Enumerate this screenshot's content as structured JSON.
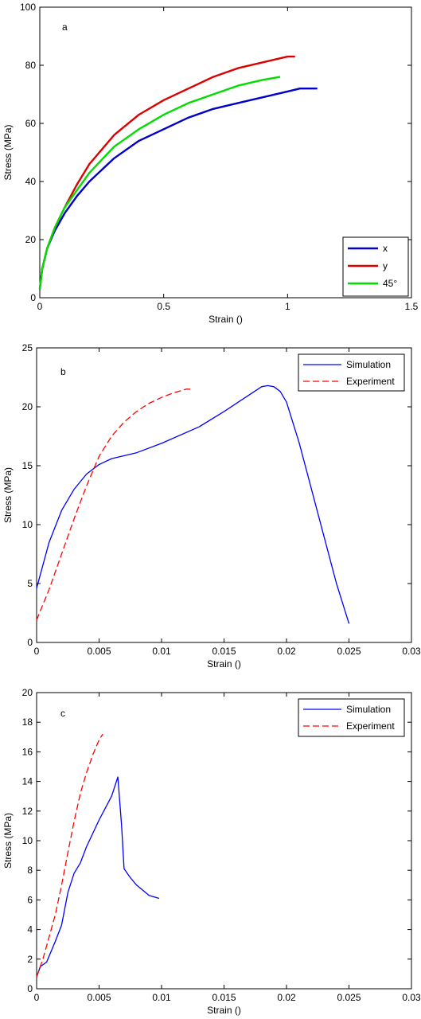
{
  "chart_data": [
    {
      "type": "line",
      "panel_label": "a",
      "xlabel": "Strain ()",
      "ylabel": "Stress (MPa)",
      "xlim": [
        0,
        1.5
      ],
      "ylim": [
        0,
        100
      ],
      "xticks": [
        0,
        0.5,
        1,
        1.5
      ],
      "xtick_labels": [
        "0",
        "0.5",
        "1",
        "1.5"
      ],
      "yticks": [
        0,
        20,
        40,
        60,
        80,
        100
      ],
      "ytick_labels": [
        "0",
        "20",
        "40",
        "60",
        "80",
        "100"
      ],
      "legend_position": "bottom-right",
      "series": [
        {
          "name": "x",
          "color": "#0000cc",
          "dash": "solid",
          "x": [
            0,
            0.01,
            0.03,
            0.06,
            0.1,
            0.15,
            0.2,
            0.3,
            0.4,
            0.5,
            0.6,
            0.7,
            0.8,
            0.9,
            1.0,
            1.05,
            1.1,
            1.12
          ],
          "y": [
            3,
            10,
            17,
            23,
            29,
            35,
            40,
            48,
            54,
            58,
            62,
            65,
            67,
            69,
            71,
            72,
            72,
            72
          ]
        },
        {
          "name": "y",
          "color": "#dd0000",
          "dash": "solid",
          "x": [
            0,
            0.01,
            0.03,
            0.06,
            0.1,
            0.15,
            0.2,
            0.3,
            0.4,
            0.5,
            0.6,
            0.7,
            0.8,
            0.9,
            1.0,
            1.03
          ],
          "y": [
            3,
            10,
            17,
            24,
            31,
            39,
            46,
            56,
            63,
            68,
            72,
            76,
            79,
            81,
            83,
            83
          ]
        },
        {
          "name": "45°",
          "color": "#00dd00",
          "dash": "solid",
          "x": [
            0,
            0.01,
            0.03,
            0.06,
            0.1,
            0.15,
            0.2,
            0.3,
            0.4,
            0.5,
            0.6,
            0.7,
            0.8,
            0.9,
            0.97
          ],
          "y": [
            3,
            10,
            17,
            24,
            31,
            37,
            43,
            52,
            58,
            63,
            67,
            70,
            73,
            75,
            76
          ]
        }
      ]
    },
    {
      "type": "line",
      "panel_label": "b",
      "xlabel": "Strain ()",
      "ylabel": "Stress (MPa)",
      "xlim": [
        0,
        0.03
      ],
      "ylim": [
        0,
        25
      ],
      "xticks": [
        0,
        0.005,
        0.01,
        0.015,
        0.02,
        0.025,
        0.03
      ],
      "xtick_labels": [
        "0",
        "0.005",
        "0.01",
        "0.015",
        "0.02",
        "0.025",
        "0.03"
      ],
      "yticks": [
        0,
        5,
        10,
        15,
        20,
        25
      ],
      "ytick_labels": [
        "0",
        "5",
        "10",
        "15",
        "20",
        "25"
      ],
      "legend_position": "top-right",
      "series": [
        {
          "name": "Simulation",
          "color": "#0000ff",
          "dash": "solid",
          "x": [
            0,
            0.001,
            0.002,
            0.003,
            0.004,
            0.005,
            0.006,
            0.008,
            0.01,
            0.013,
            0.015,
            0.017,
            0.018,
            0.0185,
            0.019,
            0.0195,
            0.02,
            0.021,
            0.022,
            0.023,
            0.024,
            0.025
          ],
          "y": [
            4.6,
            8.5,
            11.2,
            13.0,
            14.3,
            15.1,
            15.6,
            16.1,
            16.9,
            18.3,
            19.6,
            21.0,
            21.7,
            21.8,
            21.7,
            21.3,
            20.4,
            17.0,
            13.0,
            9.0,
            5.0,
            1.6
          ]
        },
        {
          "name": "Experiment",
          "color": "#ff0000",
          "dash": "dashed",
          "x": [
            0,
            0.001,
            0.002,
            0.003,
            0.004,
            0.005,
            0.006,
            0.007,
            0.008,
            0.009,
            0.01,
            0.011,
            0.012,
            0.0125
          ],
          "y": [
            1.9,
            4.5,
            7.5,
            10.5,
            13.3,
            15.8,
            17.5,
            18.7,
            19.6,
            20.3,
            20.8,
            21.2,
            21.5,
            21.5
          ]
        }
      ]
    },
    {
      "type": "line",
      "panel_label": "c",
      "xlabel": "Strain ()",
      "ylabel": "Stress (MPa)",
      "xlim": [
        0,
        0.03
      ],
      "ylim": [
        0,
        20
      ],
      "xticks": [
        0,
        0.005,
        0.01,
        0.015,
        0.02,
        0.025,
        0.03
      ],
      "xtick_labels": [
        "0",
        "0.005",
        "0.01",
        "0.015",
        "0.02",
        "0.025",
        "0.03"
      ],
      "yticks": [
        0,
        2,
        4,
        6,
        8,
        10,
        12,
        14,
        16,
        18,
        20
      ],
      "ytick_labels": [
        "0",
        "2",
        "4",
        "6",
        "8",
        "10",
        "12",
        "14",
        "16",
        "18",
        "20"
      ],
      "legend_position": "top-right",
      "series": [
        {
          "name": "Simulation",
          "color": "#0000ff",
          "dash": "solid",
          "x": [
            0,
            0.0003,
            0.0008,
            0.0015,
            0.002,
            0.0025,
            0.003,
            0.0035,
            0.004,
            0.005,
            0.006,
            0.0065,
            0.0068,
            0.007,
            0.0075,
            0.008,
            0.009,
            0.0098
          ],
          "y": [
            0.8,
            1.5,
            1.8,
            3.2,
            4.3,
            6.5,
            7.8,
            8.5,
            9.6,
            11.4,
            13.0,
            14.3,
            11.0,
            8.1,
            7.5,
            7.0,
            6.3,
            6.1
          ]
        },
        {
          "name": "Experiment",
          "color": "#ff0000",
          "dash": "dashed",
          "x": [
            0,
            0.0005,
            0.001,
            0.0015,
            0.002,
            0.0025,
            0.003,
            0.0035,
            0.004,
            0.0045,
            0.005,
            0.0053
          ],
          "y": [
            0.8,
            2.0,
            3.5,
            5.0,
            7.0,
            9.2,
            11.3,
            13.2,
            14.6,
            15.8,
            16.8,
            17.2
          ]
        }
      ]
    }
  ]
}
